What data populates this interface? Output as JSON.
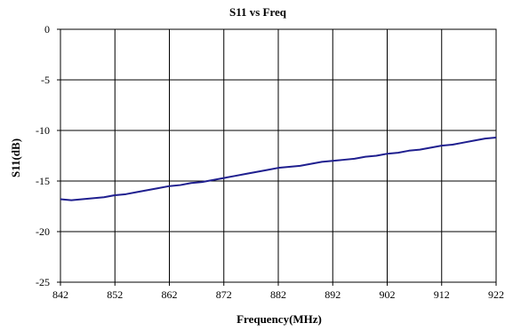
{
  "chart_data": {
    "type": "line",
    "title": "S11 vs Freq",
    "xlabel": "Frequency(MHz)",
    "ylabel": "S11(dB)",
    "xlim": [
      842,
      922
    ],
    "ylim": [
      -25,
      0
    ],
    "x_ticks": [
      842,
      852,
      862,
      872,
      882,
      892,
      902,
      912,
      922
    ],
    "y_ticks": [
      0,
      -5,
      -10,
      -15,
      -20,
      -25
    ],
    "grid": true,
    "legend": "none",
    "series": [
      {
        "color": "#1f1f8f",
        "x": [
          842,
          844,
          846,
          848,
          850,
          852,
          854,
          856,
          858,
          860,
          862,
          864,
          866,
          868,
          870,
          872,
          874,
          876,
          878,
          880,
          882,
          884,
          886,
          888,
          890,
          892,
          894,
          896,
          898,
          900,
          902,
          904,
          906,
          908,
          910,
          912,
          914,
          916,
          918,
          920,
          922
        ],
        "y": [
          -16.8,
          -16.9,
          -16.8,
          -16.7,
          -16.6,
          -16.4,
          -16.3,
          -16.1,
          -15.9,
          -15.7,
          -15.5,
          -15.4,
          -15.2,
          -15.1,
          -14.9,
          -14.7,
          -14.5,
          -14.3,
          -14.1,
          -13.9,
          -13.7,
          -13.6,
          -13.5,
          -13.3,
          -13.1,
          -13.0,
          -12.9,
          -12.8,
          -12.6,
          -12.5,
          -12.3,
          -12.2,
          -12.0,
          -11.9,
          -11.7,
          -11.5,
          -11.4,
          -11.2,
          -11.0,
          -10.8,
          -10.7
        ]
      }
    ]
  }
}
